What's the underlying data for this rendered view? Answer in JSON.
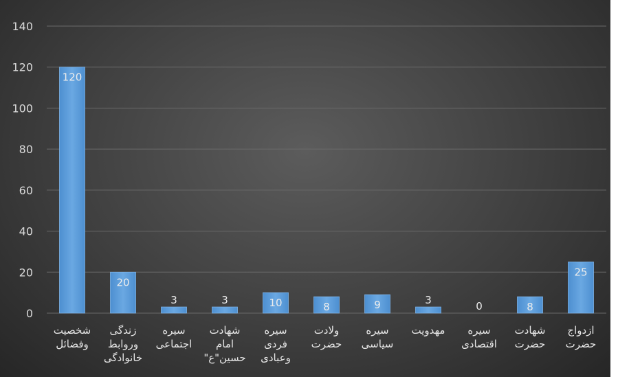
{
  "chart_data": {
    "type": "bar",
    "categories": [
      [
        "شخصیت",
        "وفضائل"
      ],
      [
        "زندگی",
        "وروابط",
        "خانوادگی"
      ],
      [
        "سیره",
        "اجتماعی"
      ],
      [
        "شهادت",
        "امام",
        "حسین\"ع\""
      ],
      [
        "سیره",
        "فردی",
        "وعبادی"
      ],
      [
        "ولادت",
        "حضرت"
      ],
      [
        "سیره",
        "سیاسی"
      ],
      [
        "مهدویت"
      ],
      [
        "سیره",
        "اقتصادی"
      ],
      [
        "شهادت",
        "حضرت"
      ],
      [
        "ازدواج",
        "حضرت"
      ]
    ],
    "values": [
      120,
      20,
      3,
      3,
      10,
      8,
      9,
      3,
      0,
      8,
      25
    ],
    "data_labels": [
      "120",
      "20",
      "3",
      "3",
      "10",
      "8",
      "9",
      "3",
      "0",
      "8",
      "25"
    ],
    "y_ticks": [
      "0",
      "20",
      "40",
      "60",
      "80",
      "100",
      "120",
      "140"
    ],
    "ylim": [
      0,
      140
    ],
    "grid": true,
    "legend": "none",
    "bar_color": "#5b9bd5",
    "bar_highlight": "#7fb3e6",
    "background": "#404040"
  }
}
